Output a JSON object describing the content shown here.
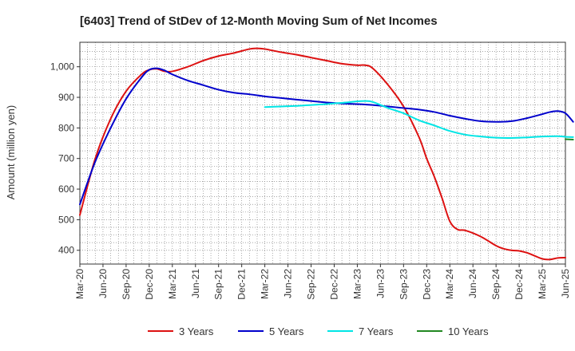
{
  "chart_data": {
    "type": "line",
    "title": "[6403]  Trend of StDev of 12-Month Moving Sum of Net Incomes",
    "ylabel": "Amount (million yen)",
    "xlabel": "",
    "ylim": [
      355,
      1080
    ],
    "yticks": [
      {
        "value": 400,
        "label": "400"
      },
      {
        "value": 500,
        "label": "500"
      },
      {
        "value": 600,
        "label": "600"
      },
      {
        "value": 700,
        "label": "700"
      },
      {
        "value": 800,
        "label": "800"
      },
      {
        "value": 900,
        "label": "900"
      },
      {
        "value": 1000,
        "label": "1,000"
      }
    ],
    "xticks": [
      "Mar-20",
      "Jun-20",
      "Sep-20",
      "Dec-20",
      "Mar-21",
      "Jun-21",
      "Sep-21",
      "Dec-21",
      "Mar-22",
      "Jun-22",
      "Sep-22",
      "Dec-22",
      "Mar-23",
      "Jun-23",
      "Sep-23",
      "Dec-23",
      "Mar-24",
      "Jun-24",
      "Sep-24",
      "Dec-24",
      "Mar-25",
      "Jun-25"
    ],
    "grid": true,
    "legend_position": "bottom",
    "series": [
      {
        "name": "3 Years",
        "color": "#dd1111",
        "points": [
          [
            0,
            515
          ],
          [
            2,
            700
          ],
          [
            4,
            830
          ],
          [
            6,
            920
          ],
          [
            8,
            975
          ],
          [
            9,
            990
          ],
          [
            10,
            993
          ],
          [
            11,
            985
          ],
          [
            12,
            985
          ],
          [
            14,
            1000
          ],
          [
            16,
            1020
          ],
          [
            18,
            1035
          ],
          [
            20,
            1045
          ],
          [
            22,
            1058
          ],
          [
            23,
            1060
          ],
          [
            24,
            1058
          ],
          [
            26,
            1048
          ],
          [
            28,
            1040
          ],
          [
            30,
            1030
          ],
          [
            32,
            1020
          ],
          [
            34,
            1010
          ],
          [
            36,
            1005
          ],
          [
            37,
            1005
          ],
          [
            38,
            995
          ],
          [
            40,
            940
          ],
          [
            42,
            870
          ],
          [
            44,
            770
          ],
          [
            45,
            700
          ],
          [
            46,
            640
          ],
          [
            47,
            570
          ],
          [
            48,
            495
          ],
          [
            49,
            468
          ],
          [
            50,
            465
          ],
          [
            52,
            445
          ],
          [
            54,
            415
          ],
          [
            55,
            405
          ],
          [
            56,
            400
          ],
          [
            57,
            398
          ],
          [
            58,
            392
          ],
          [
            59,
            382
          ],
          [
            60,
            372
          ],
          [
            61,
            370
          ],
          [
            62,
            375
          ],
          [
            63,
            376
          ]
        ]
      },
      {
        "name": "5 Years",
        "color": "#0000cc",
        "points": [
          [
            0,
            550
          ],
          [
            2,
            690
          ],
          [
            4,
            800
          ],
          [
            6,
            895
          ],
          [
            8,
            965
          ],
          [
            9,
            990
          ],
          [
            10,
            995
          ],
          [
            11,
            988
          ],
          [
            12,
            975
          ],
          [
            14,
            955
          ],
          [
            16,
            940
          ],
          [
            18,
            925
          ],
          [
            20,
            915
          ],
          [
            22,
            910
          ],
          [
            24,
            903
          ],
          [
            26,
            898
          ],
          [
            28,
            893
          ],
          [
            30,
            888
          ],
          [
            32,
            883
          ],
          [
            34,
            880
          ],
          [
            36,
            878
          ],
          [
            38,
            875
          ],
          [
            40,
            870
          ],
          [
            42,
            865
          ],
          [
            44,
            860
          ],
          [
            46,
            852
          ],
          [
            48,
            840
          ],
          [
            50,
            830
          ],
          [
            52,
            822
          ],
          [
            54,
            820
          ],
          [
            56,
            822
          ],
          [
            58,
            832
          ],
          [
            60,
            845
          ],
          [
            61,
            852
          ],
          [
            62,
            855
          ],
          [
            63,
            848
          ],
          [
            64,
            820
          ]
        ]
      },
      {
        "name": "7 Years",
        "color": "#00e5e5",
        "points": [
          [
            24,
            868
          ],
          [
            26,
            870
          ],
          [
            28,
            872
          ],
          [
            30,
            875
          ],
          [
            32,
            878
          ],
          [
            34,
            882
          ],
          [
            36,
            887
          ],
          [
            37,
            888
          ],
          [
            38,
            885
          ],
          [
            40,
            865
          ],
          [
            42,
            848
          ],
          [
            44,
            825
          ],
          [
            46,
            808
          ],
          [
            48,
            790
          ],
          [
            50,
            778
          ],
          [
            52,
            772
          ],
          [
            54,
            768
          ],
          [
            56,
            767
          ],
          [
            58,
            769
          ],
          [
            60,
            772
          ],
          [
            62,
            773
          ],
          [
            63,
            771
          ],
          [
            64,
            770
          ]
        ]
      },
      {
        "name": "10 Years",
        "color": "#228822",
        "points": [
          [
            63,
            763
          ],
          [
            64,
            762
          ]
        ]
      }
    ]
  }
}
